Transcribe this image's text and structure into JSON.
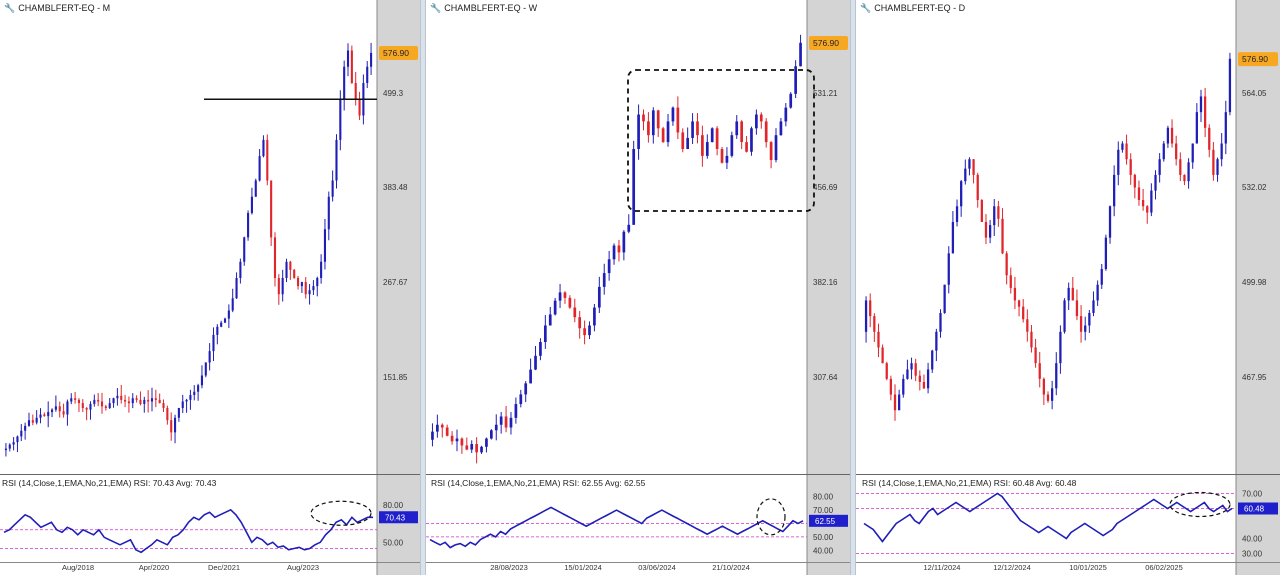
{
  "colors": {
    "up": "#1f1fb8",
    "down": "#e0262b",
    "rsi_line": "#1f1fb8",
    "rsi_ref": "#cc33cc",
    "price_badge": "#f7a823",
    "rsi_badge": "#1f1fcc",
    "axis_bg": "#d4d4d4"
  },
  "panels": [
    {
      "title": "CHAMBLFERT-EQ - M",
      "price_label": "576.90",
      "price_ticks": [
        "499.3",
        "383.48",
        "267.67",
        "151.85"
      ],
      "rsi_title": "RSI (14,Close,1,EMA,No,21,EMA) RSI: 70.43 Avg: 70.43",
      "rsi_badge": "70.43",
      "rsi_ticks": [
        "80.00",
        "50.00"
      ],
      "date_labels": [
        "Aug/2018",
        "Apr/2020",
        "Dec/2021",
        "Aug/2023"
      ]
    },
    {
      "title": "CHAMBLFERT-EQ - W",
      "price_label": "576.90",
      "price_ticks": [
        "531.21",
        "456.69",
        "382.16",
        "307.64"
      ],
      "rsi_title": "RSI (14,Close,1,EMA,No,21,EMA) RSI: 62.55 Avg: 62.55",
      "rsi_badge": "62.55",
      "rsi_ticks": [
        "80.00",
        "70.00",
        "60.00",
        "50.00",
        "40.00"
      ],
      "date_labels": [
        "28/08/2023",
        "15/01/2024",
        "03/06/2024",
        "21/10/2024"
      ]
    },
    {
      "title": "CHAMBLFERT-EQ - D",
      "price_label": "576.90",
      "price_ticks": [
        "564.05",
        "532.02",
        "499.98",
        "467.95"
      ],
      "rsi_title": "RSI (14,Close,1,EMA,No,21,EMA) RSI: 60.48 Avg: 60.48",
      "rsi_badge": "60.48",
      "rsi_ticks": [
        "70.00",
        "60.00",
        "40.00",
        "30.00"
      ],
      "date_labels": [
        "12/11/2024",
        "12/12/2024",
        "10/01/2025",
        "06/02/2025"
      ]
    }
  ],
  "chart_data": [
    {
      "type": "candlestick",
      "title": "CHAMBLFERT-EQ - M",
      "ylim": [
        60,
        620
      ],
      "last_close": 576.9,
      "horizontal_line": 520,
      "close": [
        90,
        95,
        98,
        105,
        112,
        118,
        125,
        122,
        128,
        132,
        130,
        135,
        138,
        142,
        136,
        132,
        148,
        152,
        150,
        146,
        140,
        138,
        145,
        150,
        148,
        142,
        140,
        146,
        152,
        155,
        150,
        148,
        146,
        152,
        150,
        145,
        150,
        148,
        152,
        150,
        146,
        140,
        125,
        110,
        128,
        140,
        148,
        150,
        156,
        160,
        168,
        180,
        196,
        210,
        230,
        240,
        245,
        250,
        260,
        275,
        300,
        320,
        350,
        380,
        400,
        420,
        450,
        470,
        420,
        350,
        300,
        280,
        300,
        320,
        310,
        300,
        290,
        295,
        280,
        285,
        290,
        300,
        320,
        360,
        400,
        420,
        470,
        520,
        560,
        580,
        540,
        520,
        500,
        540,
        560,
        577
      ],
      "rsi": [
        58,
        60,
        64,
        68,
        72,
        70,
        66,
        62,
        64,
        66,
        60,
        58,
        62,
        60,
        56,
        60,
        58,
        56,
        60,
        54,
        52,
        50,
        48,
        50,
        52,
        44,
        42,
        45,
        48,
        52,
        50,
        48,
        54,
        56,
        60,
        66,
        70,
        68,
        72,
        74,
        70,
        72,
        74,
        76,
        72,
        66,
        58,
        50,
        54,
        52,
        48,
        50,
        46,
        47,
        44,
        45,
        46,
        44,
        45,
        48,
        50,
        56,
        60,
        66,
        68,
        64,
        70,
        66,
        68,
        70,
        70
      ]
    },
    {
      "type": "candlestick",
      "title": "CHAMBLFERT-EQ - W",
      "ylim": [
        265,
        595
      ],
      "last_close": 576.9,
      "annotation": "dashed consolidation box 455-550",
      "close": [
        295,
        300,
        298,
        292,
        288,
        290,
        285,
        282,
        286,
        280,
        284,
        290,
        296,
        300,
        306,
        298,
        305,
        315,
        322,
        330,
        340,
        350,
        360,
        372,
        380,
        390,
        396,
        392,
        385,
        378,
        370,
        365,
        372,
        385,
        400,
        410,
        420,
        430,
        425,
        440,
        445,
        500,
        525,
        520,
        510,
        528,
        515,
        505,
        520,
        530,
        512,
        500,
        508,
        520,
        510,
        495,
        505,
        515,
        500,
        490,
        495,
        510,
        520,
        505,
        498,
        515,
        525,
        520,
        505,
        492,
        510,
        520,
        530,
        540,
        560,
        577
      ],
      "rsi": [
        48,
        46,
        44,
        46,
        42,
        44,
        45,
        43,
        46,
        44,
        48,
        50,
        52,
        50,
        54,
        52,
        56,
        58,
        60,
        62,
        64,
        66,
        68,
        70,
        72,
        70,
        68,
        66,
        64,
        62,
        60,
        58,
        60,
        62,
        64,
        66,
        68,
        70,
        68,
        66,
        64,
        62,
        60,
        64,
        66,
        68,
        70,
        68,
        66,
        64,
        62,
        60,
        58,
        56,
        54,
        52,
        54,
        56,
        58,
        56,
        54,
        52,
        54,
        56,
        58,
        60,
        62,
        60,
        58,
        56,
        54,
        58,
        62,
        60,
        62
      ]
    },
    {
      "type": "candlestick",
      "title": "CHAMBLFERT-EQ - D",
      "ylim": [
        445,
        590
      ],
      "last_close": 576.9,
      "close": [
        500,
        495,
        490,
        485,
        480,
        475,
        470,
        465,
        470,
        475,
        478,
        480,
        476,
        474,
        472,
        478,
        484,
        490,
        496,
        505,
        515,
        525,
        530,
        538,
        542,
        545,
        540,
        532,
        525,
        520,
        524,
        530,
        526,
        515,
        508,
        504,
        500,
        498,
        494,
        490,
        485,
        480,
        475,
        470,
        468,
        472,
        480,
        490,
        500,
        504,
        500,
        495,
        490,
        492,
        496,
        500,
        505,
        510,
        520,
        530,
        540,
        548,
        550,
        545,
        540,
        536,
        532,
        530,
        528,
        535,
        540,
        545,
        550,
        555,
        550,
        545,
        540,
        538,
        544,
        550,
        560,
        565,
        555,
        548,
        540,
        545,
        550,
        560,
        577
      ],
      "rsi": [
        50,
        48,
        46,
        42,
        38,
        42,
        46,
        50,
        52,
        54,
        56,
        52,
        50,
        54,
        58,
        60,
        56,
        58,
        60,
        62,
        64,
        62,
        60,
        58,
        60,
        62,
        64,
        66,
        68,
        70,
        68,
        64,
        60,
        56,
        52,
        50,
        48,
        46,
        44,
        46,
        48,
        46,
        44,
        42,
        40,
        44,
        46,
        48,
        50,
        48,
        46,
        44,
        42,
        44,
        46,
        50,
        52,
        54,
        56,
        58,
        60,
        62,
        64,
        66,
        64,
        62,
        60,
        62,
        64,
        62,
        60,
        58,
        60,
        62,
        64,
        60,
        58,
        60,
        62,
        58,
        60
      ]
    }
  ]
}
